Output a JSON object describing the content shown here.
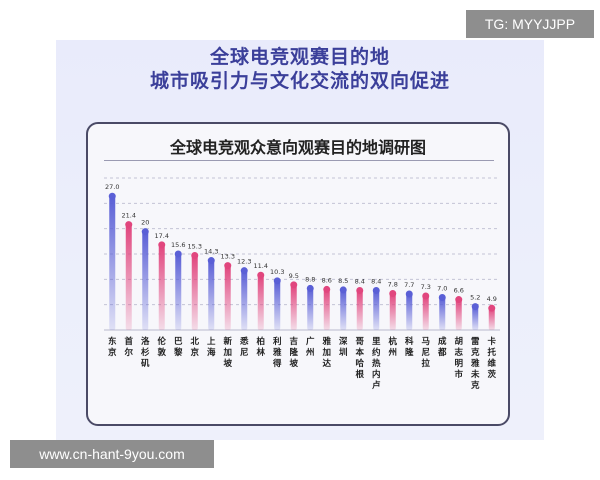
{
  "headline": {
    "line1": "全球电竞观赛目的地",
    "line2": "城市吸引力与文化交流的双向促进"
  },
  "watermarks": {
    "top_right": "TG: MYYJJPP",
    "bottom_left": "www.cn-hant-9you.com"
  },
  "colors": {
    "blue_bar": "#5a5fd6",
    "pink_bar": "#e1467e",
    "headline": "#3b3f9a"
  },
  "chart_data": {
    "type": "bar",
    "title": "全球电竞观众意向观赛目的地调研图",
    "xlabel": "",
    "ylabel": "",
    "ylim": [
      0,
      30
    ],
    "grid": "dashed horizontal",
    "categories": [
      "东京",
      "首尔",
      "洛杉矶",
      "伦敦",
      "巴黎",
      "北京",
      "上海",
      "新加坡",
      "悉尼",
      "柏林",
      "利雅得",
      "吉隆坡",
      "广州",
      "雅加达",
      "深圳",
      "哥本哈根",
      "里约热内卢",
      "杭州",
      "科隆",
      "马尼拉",
      "成都",
      "胡志明市",
      "雷克雅未克",
      "卡托维茨"
    ],
    "values": [
      27.0,
      21.4,
      20,
      17.4,
      15.6,
      15.3,
      14.3,
      13.3,
      12.3,
      11.4,
      10.3,
      9.5,
      8.8,
      8.6,
      8.5,
      8.4,
      8.4,
      7.8,
      7.7,
      7.3,
      7.0,
      6.6,
      5.2,
      4.9
    ],
    "value_labels": [
      "27.0",
      "21.4",
      "20",
      "17.4",
      "15.6",
      "15.3",
      "14.3",
      "13.3",
      "12.3",
      "11.4",
      "10.3",
      "9.5",
      "8.8",
      "8.6",
      "8.5",
      "8.4",
      "8.4",
      "7.8",
      "7.7",
      "7.3",
      "7.0",
      "6.6",
      "5.2",
      "4.9"
    ],
    "bar_colors": [
      "blue",
      "pink",
      "blue",
      "pink",
      "blue",
      "pink",
      "blue",
      "pink",
      "blue",
      "pink",
      "blue",
      "pink",
      "blue",
      "pink",
      "blue",
      "pink",
      "blue",
      "pink",
      "blue",
      "pink",
      "blue",
      "pink",
      "blue",
      "pink"
    ]
  }
}
